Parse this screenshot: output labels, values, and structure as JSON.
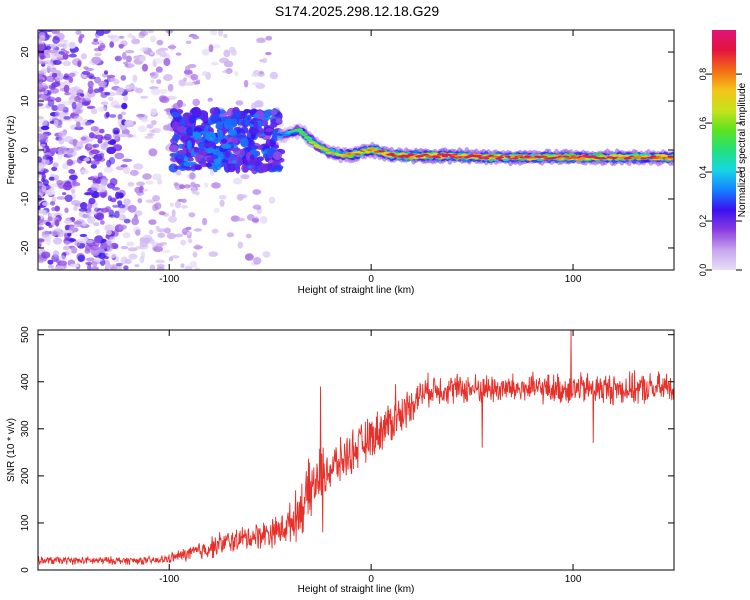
{
  "figure": {
    "title": "S174.2025.298.12.18.G29"
  },
  "colors": {
    "snr_line": "#e8302a",
    "axis": "#000000",
    "colormap_stops": [
      "#e8e0f8",
      "#c7a4ee",
      "#8a3ce0",
      "#3a10f0",
      "#1480ff",
      "#17d7e6",
      "#22e07a",
      "#5ee31f",
      "#c9e21a",
      "#f5c419",
      "#f36a16",
      "#e3133f",
      "#e0157a"
    ]
  },
  "chart_data": [
    {
      "type": "heatmap",
      "name": "spectrogram",
      "title": "S174.2025.298.12.18.G29",
      "xlabel": "Height of straight line (km)",
      "ylabel": "Frequency (Hz)",
      "xlim": [
        -165,
        150
      ],
      "ylim": [
        -24.5,
        24.5
      ],
      "xticks": [
        -100,
        0,
        100
      ],
      "yticks": [
        -20,
        -10,
        0,
        10,
        20
      ],
      "colorbar": {
        "label": "Normalized spectral amplitude",
        "range": [
          0.0,
          0.98
        ],
        "ticks": [
          0.0,
          0.2,
          0.4,
          0.6,
          0.8
        ]
      },
      "noise_region": {
        "x": [
          -165,
          -45
        ],
        "density": "high",
        "amplitude": [
          0.0,
          0.25
        ]
      },
      "transition_region": {
        "x": [
          -98,
          -45
        ],
        "freq": [
          -4,
          8
        ],
        "amplitude": [
          0.15,
          0.35
        ]
      },
      "ridge": {
        "x": [
          -45,
          -35,
          -30,
          -25,
          -20,
          -15,
          -10,
          -5,
          0,
          5,
          10,
          20,
          40,
          60,
          80,
          100,
          120,
          150
        ],
        "freq": [
          3,
          4,
          2,
          0.5,
          -0.5,
          -1,
          -1,
          -0.5,
          0,
          -0.5,
          -1,
          -1.2,
          -1.2,
          -1.5,
          -1.5,
          -1.5,
          -1.5,
          -1.5
        ],
        "amplitude": [
          0.35,
          0.55,
          0.6,
          0.65,
          0.7,
          0.72,
          0.75,
          0.78,
          0.82,
          0.85,
          0.88,
          0.95,
          0.97,
          0.9,
          0.92,
          0.93,
          0.9,
          0.85
        ]
      }
    },
    {
      "type": "line",
      "name": "snr",
      "xlabel": "Height of straight line (km)",
      "ylabel": "SNR (10 * v/v)",
      "xlim": [
        -165,
        150
      ],
      "ylim": [
        0,
        510
      ],
      "xticks": [
        -100,
        0,
        100
      ],
      "yticks": [
        0,
        100,
        200,
        300,
        400,
        500
      ],
      "series": [
        {
          "name": "SNR",
          "x": [
            -165,
            -150,
            -135,
            -120,
            -105,
            -95,
            -85,
            -75,
            -65,
            -55,
            -45,
            -40,
            -35,
            -30,
            -25,
            -20,
            -15,
            -10,
            -5,
            0,
            5,
            10,
            15,
            20,
            25,
            30,
            40,
            50,
            60,
            70,
            80,
            90,
            100,
            110,
            120,
            130,
            140,
            150
          ],
          "values": [
            20,
            20,
            20,
            20,
            20,
            30,
            40,
            55,
            65,
            75,
            85,
            100,
            130,
            170,
            200,
            215,
            230,
            250,
            265,
            280,
            300,
            315,
            330,
            355,
            375,
            385,
            385,
            385,
            385,
            385,
            385,
            385,
            385,
            385,
            385,
            385,
            385,
            390
          ],
          "noise_amplitude": [
            10,
            10,
            10,
            10,
            10,
            15,
            25,
            30,
            30,
            35,
            40,
            50,
            70,
            80,
            70,
            60,
            55,
            55,
            55,
            55,
            55,
            55,
            50,
            45,
            40,
            40,
            38,
            38,
            38,
            38,
            38,
            38,
            40,
            40,
            40,
            40,
            40,
            40
          ],
          "spikes": [
            [
              -25,
              390
            ],
            [
              -24,
              80
            ],
            [
              0,
              310
            ],
            [
              12,
              395
            ],
            [
              55,
              260
            ],
            [
              99,
              510
            ],
            [
              110,
              270
            ],
            [
              150,
              285
            ]
          ]
        }
      ]
    }
  ]
}
